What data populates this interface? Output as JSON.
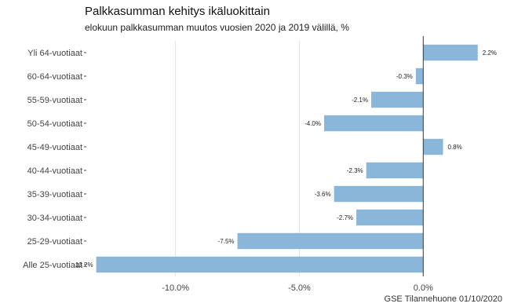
{
  "chart_data": {
    "type": "bar",
    "orientation": "horizontal",
    "title": "Palkkasumman kehitys ikäluokittain",
    "subtitle": "elokuun palkkasumman muutos vuosien 2020 ja 2019 välillä, %",
    "caption": "GSE Tilannehuone 01/10/2020",
    "categories": [
      "Yli 64-vuotiaat",
      "60-64-vuotiaat",
      "55-59-vuotiaat",
      "50-54-vuotiaat",
      "45-49-vuotiaat",
      "40-44-vuotiaat",
      "35-39-vuotiaat",
      "30-34-vuotiaat",
      "25-29-vuotiaat",
      "Alle 25-vuotiaat"
    ],
    "values": [
      2.2,
      -0.3,
      -2.1,
      -4.0,
      0.8,
      -2.3,
      -3.6,
      -2.7,
      -7.5,
      -13.2
    ],
    "value_labels": [
      "2.2%",
      "-0.3%",
      "-2.1%",
      "-4.0%",
      "0.8%",
      "-2.3%",
      "-3.6%",
      "-2.7%",
      "-7.5%",
      "-13.2%"
    ],
    "x_ticks": [
      -10,
      -5,
      0
    ],
    "x_tick_labels": [
      "-10.0%",
      "-5.0%",
      "0.0%"
    ],
    "xlim": [
      -13.2,
      2.2
    ],
    "grid": true,
    "bar_color": "#8ab7d9",
    "zero_line_color": "#333333"
  }
}
